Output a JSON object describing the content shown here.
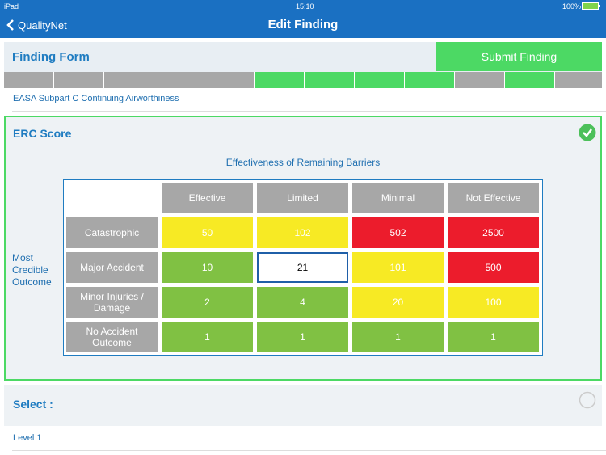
{
  "status_bar": {
    "device": "iPad",
    "time": "15:10",
    "battery": "100%"
  },
  "nav": {
    "back": "QualityNet",
    "title": "Edit Finding"
  },
  "form": {
    "title": "Finding Form",
    "submit": "Submit Finding",
    "section": "EASA Subpart C Continuing Airworthiness"
  },
  "erc": {
    "title": "ERC Score",
    "column_heading": "Effectiveness of Remaining Barriers",
    "row_heading": "Most Credible Outcome",
    "columns": [
      "Effective",
      "Limited",
      "Minimal",
      "Not Effective"
    ],
    "rows": [
      {
        "label": "Catastrophic",
        "cells": [
          {
            "value": 50,
            "color": "#f7ea24"
          },
          {
            "value": 102,
            "color": "#f7ea24"
          },
          {
            "value": 502,
            "color": "#ec1c2c"
          },
          {
            "value": 2500,
            "color": "#ec1c2c"
          }
        ]
      },
      {
        "label": "Major Accident",
        "cells": [
          {
            "value": 10,
            "color": "#80c143"
          },
          {
            "value": 21,
            "color": "#ffffff",
            "selected": true
          },
          {
            "value": 101,
            "color": "#f7ea24"
          },
          {
            "value": 500,
            "color": "#ec1c2c"
          }
        ]
      },
      {
        "label": "Minor Injuries / Damage",
        "cells": [
          {
            "value": 2,
            "color": "#80c143"
          },
          {
            "value": 4,
            "color": "#80c143"
          },
          {
            "value": 20,
            "color": "#f7ea24"
          },
          {
            "value": 100,
            "color": "#f7ea24"
          }
        ]
      },
      {
        "label": "No Accident Outcome",
        "cells": [
          {
            "value": 1,
            "color": "#80c143"
          },
          {
            "value": 1,
            "color": "#80c143"
          },
          {
            "value": 1,
            "color": "#80c143"
          },
          {
            "value": 1,
            "color": "#80c143"
          }
        ]
      }
    ]
  },
  "select": {
    "title": "Select :",
    "option": "Level 1"
  }
}
